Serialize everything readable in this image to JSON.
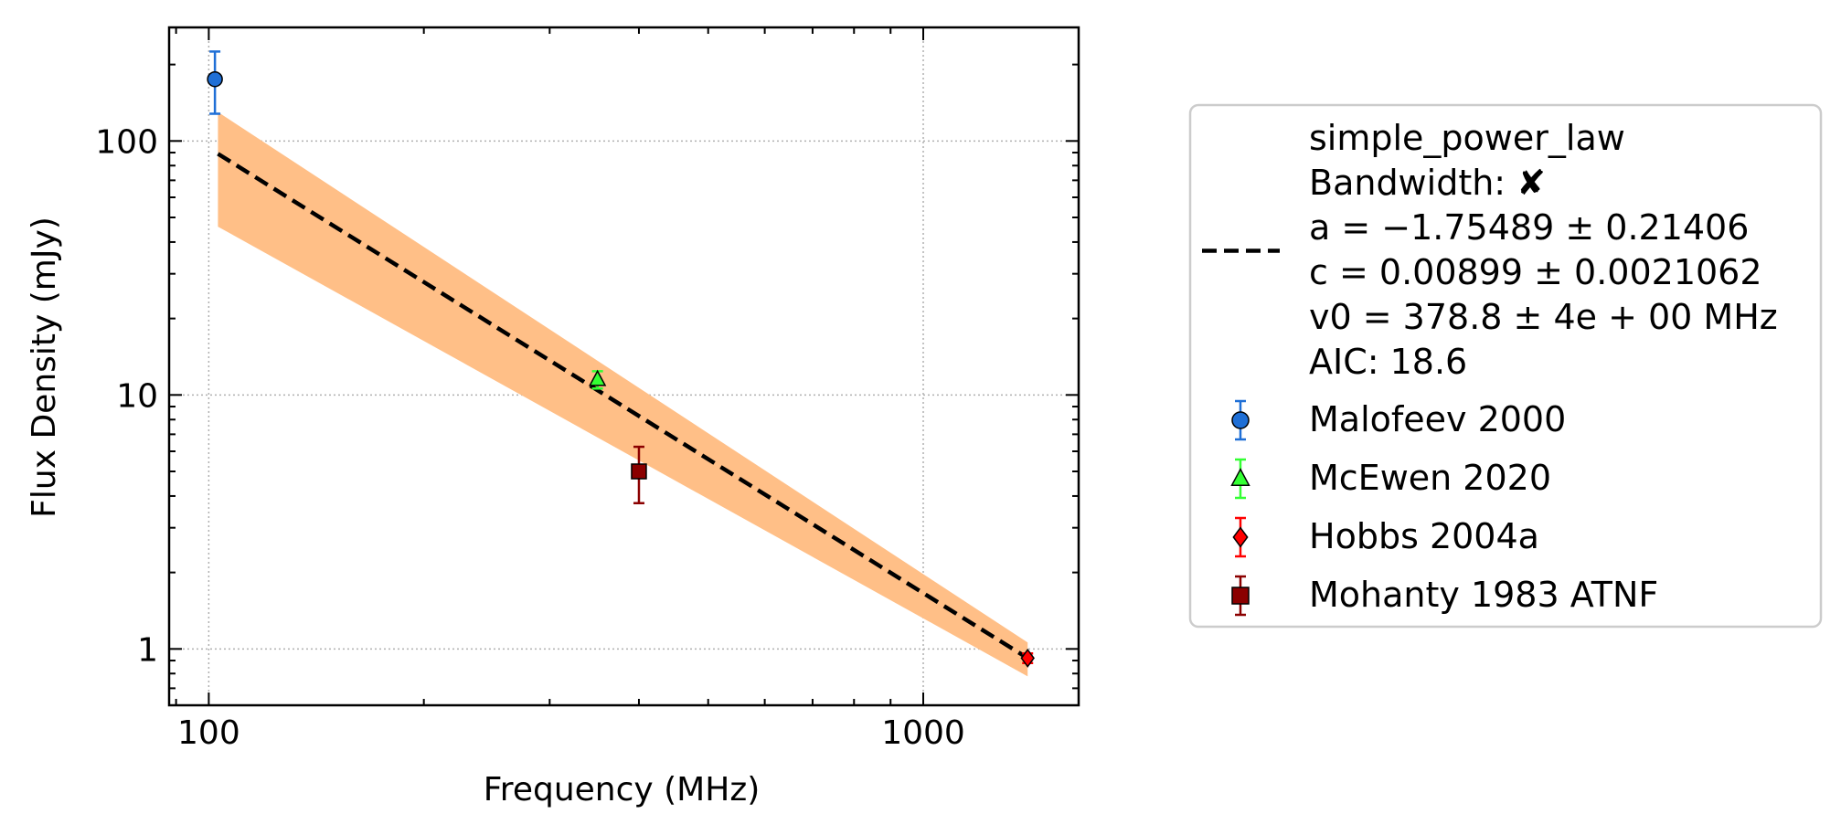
{
  "chart_data": {
    "type": "scatter",
    "title": "",
    "xlabel": "Frequency (MHz)",
    "ylabel": "Flux Density (mJy)",
    "xscale": "log",
    "yscale": "log",
    "xlim": [
      88,
      1650
    ],
    "ylim": [
      0.6,
      280
    ],
    "grid": true,
    "x_ticks": [
      {
        "value": 100,
        "label": "100"
      },
      {
        "value": 1000,
        "label": "1000"
      }
    ],
    "y_ticks": [
      {
        "value": 1,
        "label": "1"
      },
      {
        "value": 10,
        "label": "10"
      },
      {
        "value": 100,
        "label": "100"
      }
    ],
    "fit": {
      "style": "dashed",
      "color": "#000000",
      "band_color": "#ffbf87",
      "x": [
        103,
        1400
      ],
      "y": [
        89,
        0.92
      ],
      "band_lower": [
        46,
        0.78
      ],
      "band_upper": [
        130,
        1.06
      ],
      "legend_lines": [
        "simple_power_law",
        "Bandwidth: ✘",
        "a = −1.75489 ± 0.21406",
        "c = 0.00899 ± 0.0021062",
        "v0 = 378.8 ± 4e + 00 MHz",
        "AIC: 18.6"
      ]
    },
    "series": [
      {
        "name": "Malofeev 2000",
        "marker": "circle",
        "color": "#1f6fd6",
        "ecolor": "#1f6fd6",
        "points": [
          {
            "x": 102,
            "y": 175,
            "ylo": 128,
            "yhi": 225
          }
        ]
      },
      {
        "name": "McEwen 2020",
        "marker": "triangle",
        "color": "#33ff33",
        "ecolor": "#33ff33",
        "points": [
          {
            "x": 350,
            "y": 11.5,
            "ylo": 10.6,
            "yhi": 12.4
          }
        ]
      },
      {
        "name": "Hobbs 2004a",
        "marker": "diamond",
        "color": "#ff0000",
        "ecolor": "#ff0000",
        "points": [
          {
            "x": 1400,
            "y": 0.92,
            "ylo": 0.88,
            "yhi": 0.96
          }
        ]
      },
      {
        "name": "Mohanty 1983 ATNF",
        "marker": "square",
        "color": "#8b0000",
        "ecolor": "#8b0000",
        "points": [
          {
            "x": 400,
            "y": 5.0,
            "ylo": 3.75,
            "yhi": 6.25
          }
        ]
      }
    ],
    "legend": "outside-right"
  }
}
